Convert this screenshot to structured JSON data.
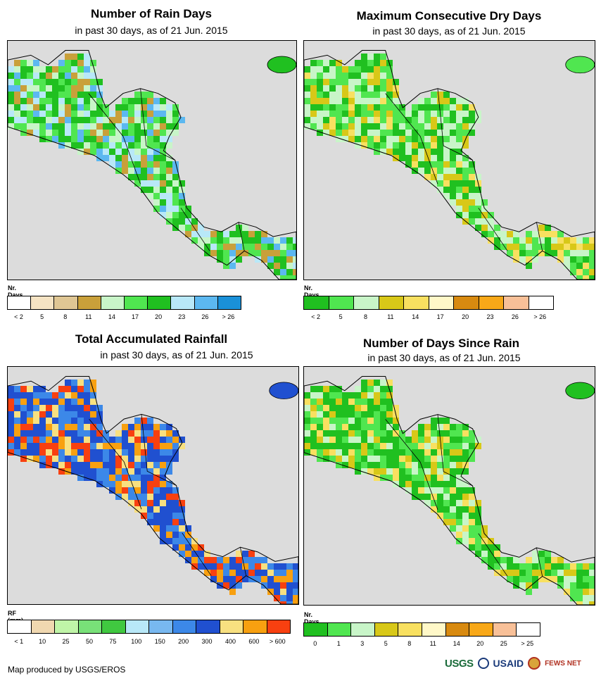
{
  "panels": [
    {
      "id": "rain-days",
      "title": "Number of Rain Days",
      "subtitle": "in past 30 days, as of 21 Jun. 2015",
      "legend_unit": "Nr. Days",
      "legend_colors": [
        "#ffffff",
        "#f5e3c3",
        "#dfc694",
        "#c9a03a",
        "#c8f5c8",
        "#50e650",
        "#20c020",
        "#b8e8f8",
        "#5cb8f0",
        "#1a90d8"
      ],
      "tick_labels": [
        "< 2",
        "5",
        "8",
        "11",
        "14",
        "17",
        "20",
        "23",
        "26",
        "> 26"
      ],
      "palette": [
        "#20c020",
        "#50e650",
        "#c8f5c8",
        "#b8e8f8",
        "#5cb8f0",
        "#20c020",
        "#50e650",
        "#c9a03a"
      ]
    },
    {
      "id": "dry-days",
      "title": "Maximum Consecutive Dry Days",
      "subtitle": "in past 30 days, as of 21 Jun. 2015",
      "legend_unit": "Nr. Days",
      "legend_colors": [
        "#20c020",
        "#50e650",
        "#c8f5c8",
        "#d8c818",
        "#f8e060",
        "#fff8c8",
        "#d88a10",
        "#f8a818",
        "#f8c098",
        "#ffffff"
      ],
      "tick_labels": [
        "< 2",
        "5",
        "8",
        "11",
        "14",
        "17",
        "20",
        "23",
        "26",
        "> 26"
      ],
      "palette": [
        "#50e650",
        "#20c020",
        "#c8f5c8",
        "#50e650",
        "#d8c818",
        "#20c020",
        "#c8f5c8",
        "#f8e060"
      ]
    },
    {
      "id": "rainfall",
      "title": "Total Accumulated Rainfall",
      "subtitle": "in past 30 days, as of 21 Jun. 2015",
      "legend_unit": "RF (mm)",
      "legend_colors": [
        "#ffffff",
        "#f0d8b0",
        "#c0f5a8",
        "#78e078",
        "#40c840",
        "#b8e8f8",
        "#78b8f0",
        "#3c88e8",
        "#2050d0",
        "#f8e080",
        "#f8a010",
        "#f84010"
      ],
      "tick_labels": [
        "< 1",
        "10",
        "25",
        "50",
        "75",
        "100",
        "150",
        "200",
        "300",
        "400",
        "600",
        "> 600"
      ],
      "palette": [
        "#2050d0",
        "#3c88e8",
        "#2050d0",
        "#f8e080",
        "#f8a010",
        "#3c88e8",
        "#2050d0",
        "#f84010"
      ]
    },
    {
      "id": "days-since-rain",
      "title": "Number of Days Since Rain",
      "subtitle": "in past 30 days, as of 21 Jun. 2015",
      "legend_unit": "Nr. Days",
      "legend_colors": [
        "#20c020",
        "#50e650",
        "#c8f5c8",
        "#d8c818",
        "#f8e060",
        "#fff8c8",
        "#d88a10",
        "#f8a818",
        "#f8c098",
        "#ffffff"
      ],
      "tick_labels": [
        "0",
        "1",
        "3",
        "5",
        "8",
        "11",
        "14",
        "20",
        "25",
        "> 25"
      ],
      "palette": [
        "#20c020",
        "#50e650",
        "#20c020",
        "#c8f5c8",
        "#20c020",
        "#d8c818",
        "#50e650",
        "#f8e060"
      ]
    }
  ],
  "footer": {
    "credit": "Map produced by USGS/EROS",
    "logos": [
      "USGS",
      "USAID",
      "FEWS NET"
    ]
  }
}
